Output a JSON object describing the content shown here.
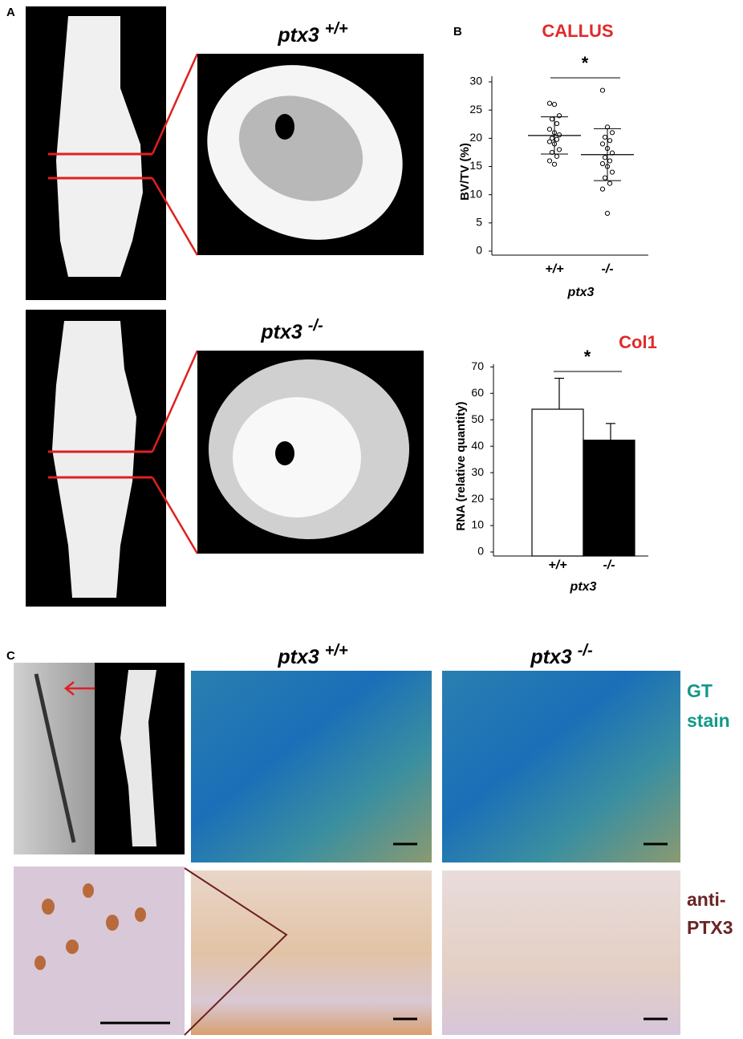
{
  "figure": {
    "panel_a": {
      "label": "A",
      "top_name": "ptx3",
      "top_genotype": "+/+",
      "bottom_name": "ptx3",
      "bottom_genotype": "-/-"
    },
    "panel_b": {
      "label": "B"
    },
    "panel_c": {
      "label": "C",
      "left_name": "ptx3",
      "left_genotype": "+/+",
      "right_name": "ptx3",
      "right_genotype": "-/-",
      "stain_top": [
        "GT",
        "stain"
      ],
      "stain_bottom": [
        "anti-",
        "PTX3"
      ]
    }
  },
  "chart_data": [
    {
      "type": "dot_plot",
      "title": "CALLUS",
      "ylabel": "BV/TV (%)",
      "xlabel": "ptx3",
      "annotation": "*",
      "categories": [
        "+/+",
        "-/-"
      ],
      "groups": [
        {
          "points": [
            26.2,
            26,
            24,
            23.4,
            22.6,
            21.6,
            21,
            20.6,
            20,
            19.8,
            19.4,
            19,
            18,
            17.5,
            16.8,
            16,
            15.4
          ],
          "mean": 20.5,
          "sd": 3.3
        },
        {
          "points": [
            28.5,
            22,
            21,
            20.2,
            19.6,
            19,
            18.2,
            17.4,
            16.6,
            16,
            15.5,
            15,
            14,
            13,
            12,
            11,
            6.7
          ],
          "mean": 17.1,
          "sd": 4.6
        }
      ],
      "color": "#ffffff",
      "ylim": [
        0,
        31
      ],
      "yticks": [
        0,
        5,
        10,
        15,
        20,
        25,
        30
      ]
    },
    {
      "type": "bar",
      "title": "Col1",
      "ylabel": "RNA (relative quantity)",
      "xlabel": "ptx3",
      "annotation": "*",
      "categories": [
        "+/+",
        "-/-"
      ],
      "values": [
        54,
        42.3
      ],
      "errors": [
        11.7,
        6.3
      ],
      "colors": [
        "#ffffff",
        "#000000"
      ],
      "ylim": [
        0,
        71
      ],
      "yticks": [
        0,
        10,
        20,
        30,
        40,
        50,
        60,
        70
      ]
    }
  ]
}
